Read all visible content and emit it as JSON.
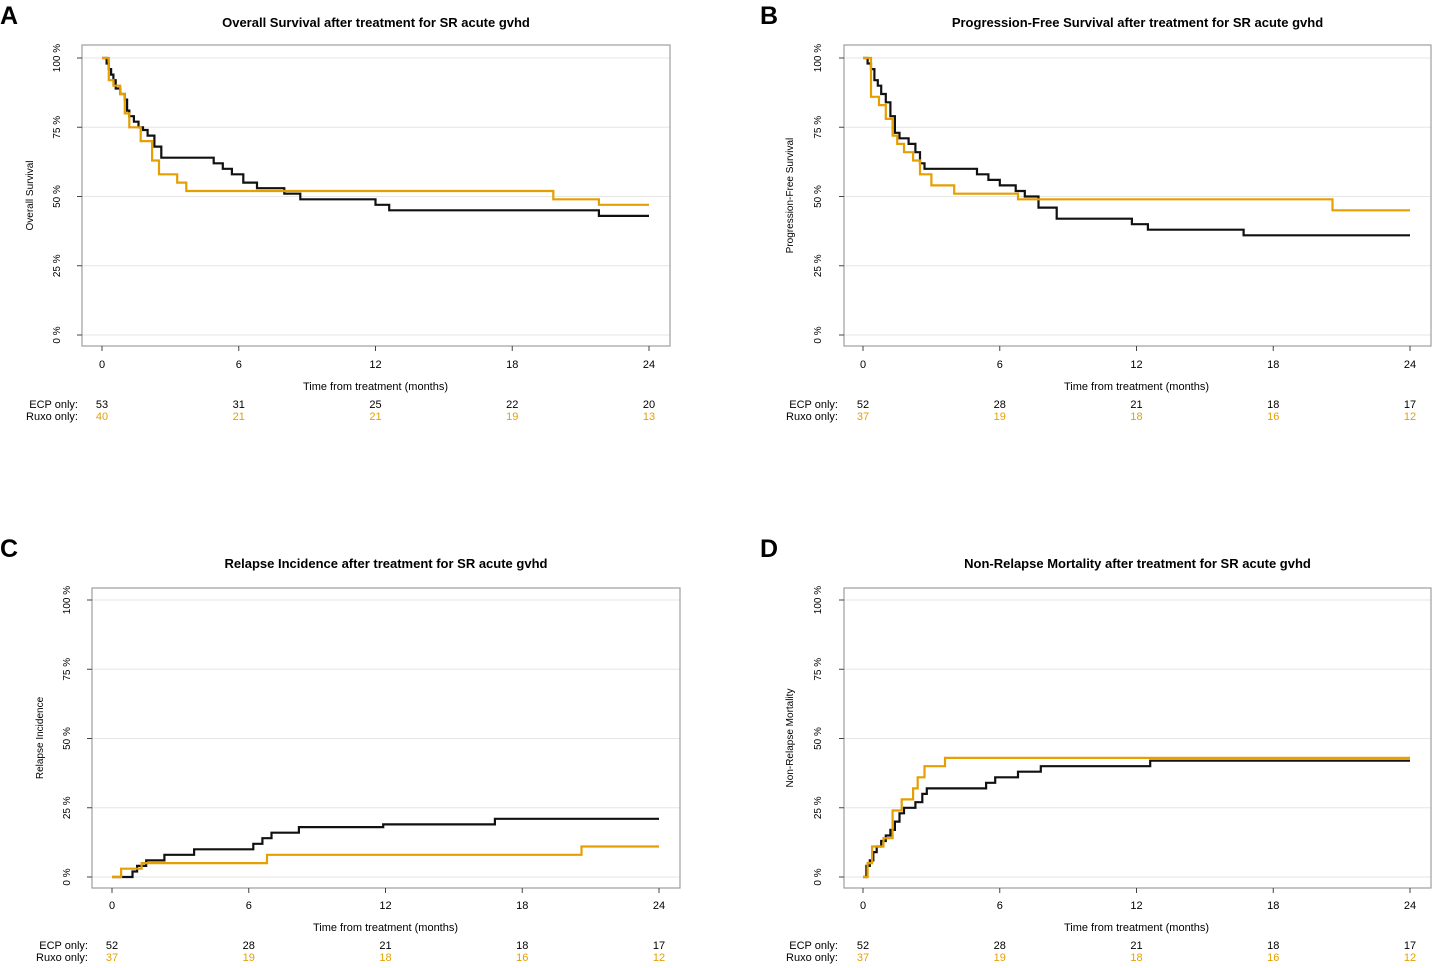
{
  "colors": {
    "ecp": "#111111",
    "ruxo": "#E69F00",
    "grid": "#E6E6E6",
    "frame": "#9E9E9E",
    "text": "#000000"
  },
  "legend": {
    "ecp": "ECP only:",
    "ruxo": "Ruxo only:"
  },
  "chart_data": [
    {
      "panel": "A",
      "type": "line",
      "step": true,
      "title": "Overall Survival after treatment for SR acute gvhd",
      "xlabel": "Time from treatment (months)",
      "ylabel": "Overall Survival",
      "xlim": [
        0,
        24
      ],
      "ylim": [
        0,
        100
      ],
      "xticks": [
        0,
        6,
        12,
        18,
        24
      ],
      "yticks": [
        0,
        25,
        50,
        75,
        100
      ],
      "ytick_labels": [
        "0 %",
        "25 %",
        "50 %",
        "75 %",
        "100 %"
      ],
      "grid": true,
      "series": [
        {
          "name": "ECP only",
          "x": [
            0,
            0.2,
            0.3,
            0.4,
            0.5,
            0.6,
            0.8,
            1.0,
            1.1,
            1.2,
            1.4,
            1.6,
            1.8,
            2.0,
            2.3,
            2.6,
            4.9,
            5.3,
            5.7,
            6.2,
            6.8,
            7.3,
            8.0,
            8.7,
            12.0,
            12.6,
            21.8,
            24
          ],
          "y": [
            100,
            98,
            96,
            94,
            92,
            89,
            87,
            85,
            81,
            79,
            77,
            75,
            74,
            72,
            68,
            64,
            62,
            60,
            58,
            55,
            53,
            53,
            51,
            49,
            47,
            45,
            43,
            43
          ]
        },
        {
          "name": "Ruxo only",
          "x": [
            0,
            0.3,
            0.5,
            0.8,
            1.0,
            1.2,
            1.7,
            2.2,
            2.5,
            3.3,
            3.7,
            19.8,
            21.8,
            24
          ],
          "y": [
            100,
            92,
            90,
            87,
            80,
            75,
            70,
            63,
            58,
            55,
            52,
            49,
            47,
            47
          ]
        }
      ],
      "risk_table": {
        "times": [
          0,
          6,
          12,
          18,
          24
        ],
        "ecp": [
          53,
          31,
          25,
          22,
          20
        ],
        "ruxo": [
          40,
          21,
          21,
          19,
          13
        ]
      }
    },
    {
      "panel": "B",
      "type": "line",
      "step": true,
      "title": "Progression-Free Survival after treatment for SR acute gvhd",
      "xlabel": "Time from treatment (months)",
      "ylabel": "Progression-Free Survival",
      "xlim": [
        0,
        24
      ],
      "ylim": [
        0,
        100
      ],
      "xticks": [
        0,
        6,
        12,
        18,
        24
      ],
      "yticks": [
        0,
        25,
        50,
        75,
        100
      ],
      "ytick_labels": [
        "0 %",
        "25 %",
        "50 %",
        "75 %",
        "100 %"
      ],
      "grid": true,
      "series": [
        {
          "name": "ECP only",
          "x": [
            0,
            0.2,
            0.35,
            0.5,
            0.65,
            0.8,
            1.0,
            1.2,
            1.4,
            1.6,
            2.0,
            2.3,
            2.5,
            2.7,
            5.0,
            5.5,
            6.0,
            6.7,
            7.1,
            7.7,
            8.5,
            11.8,
            12.5,
            16.7,
            24
          ],
          "y": [
            100,
            98,
            96,
            92,
            90,
            87,
            84,
            79,
            73,
            71,
            69,
            66,
            62,
            60,
            58,
            56,
            54,
            52,
            50,
            46,
            42,
            40,
            38,
            36,
            36
          ]
        },
        {
          "name": "Ruxo only",
          "x": [
            0,
            0.35,
            0.7,
            1.0,
            1.3,
            1.5,
            1.8,
            2.2,
            2.5,
            3.0,
            4.0,
            6.8,
            20.6,
            24
          ],
          "y": [
            100,
            86,
            83,
            78,
            72,
            69,
            66,
            63,
            58,
            54,
            51,
            49,
            45,
            45
          ]
        }
      ],
      "risk_table": {
        "times": [
          0,
          6,
          12,
          18,
          24
        ],
        "ecp": [
          52,
          28,
          21,
          18,
          17
        ],
        "ruxo": [
          37,
          19,
          18,
          16,
          12
        ]
      }
    },
    {
      "panel": "C",
      "type": "line",
      "step": true,
      "title": "Relapse Incidence after treatment for SR acute gvhd",
      "xlabel": "Time from treatment (months)",
      "ylabel": "Relapse Incidence",
      "xlim": [
        0,
        24
      ],
      "ylim": [
        0,
        100
      ],
      "xticks": [
        0,
        6,
        12,
        18,
        24
      ],
      "yticks": [
        0,
        25,
        50,
        75,
        100
      ],
      "ytick_labels": [
        "0 %",
        "25 %",
        "50 %",
        "75 %",
        "100 %"
      ],
      "grid": true,
      "series": [
        {
          "name": "ECP only",
          "x": [
            0,
            0.9,
            1.1,
            1.5,
            2.3,
            3.6,
            6.2,
            6.6,
            7.0,
            8.2,
            11.9,
            16.8,
            24
          ],
          "y": [
            0,
            2,
            4,
            6,
            8,
            10,
            12,
            14,
            16,
            18,
            19,
            21,
            21
          ]
        },
        {
          "name": "Ruxo only",
          "x": [
            0,
            0.4,
            1.3,
            6.8,
            20.6,
            24
          ],
          "y": [
            0,
            3,
            5,
            8,
            11,
            11
          ]
        }
      ],
      "risk_table": {
        "times": [
          0,
          6,
          12,
          18,
          24
        ],
        "ecp": [
          52,
          28,
          21,
          18,
          17
        ],
        "ruxo": [
          37,
          19,
          18,
          16,
          12
        ]
      }
    },
    {
      "panel": "D",
      "type": "line",
      "step": true,
      "title": "Non-Relapse Mortality after treatment for SR acute gvhd",
      "xlabel": "Time from treatment (months)",
      "ylabel": "Non-Relapse Mortality",
      "xlim": [
        0,
        24
      ],
      "ylim": [
        0,
        100
      ],
      "xticks": [
        0,
        6,
        12,
        18,
        24
      ],
      "yticks": [
        0,
        25,
        50,
        75,
        100
      ],
      "ytick_labels": [
        "0 %",
        "25 %",
        "50 %",
        "75 %",
        "100 %"
      ],
      "grid": true,
      "series": [
        {
          "name": "ECP only",
          "x": [
            0,
            0.15,
            0.3,
            0.45,
            0.6,
            0.8,
            1.0,
            1.2,
            1.4,
            1.6,
            1.8,
            2.3,
            2.6,
            2.8,
            5.4,
            5.8,
            6.8,
            7.8,
            12.6,
            24
          ],
          "y": [
            0,
            4,
            6,
            9,
            11,
            13,
            15,
            17,
            20,
            23,
            25,
            27,
            30,
            32,
            34,
            36,
            38,
            40,
            42,
            42
          ]
        },
        {
          "name": "Ruxo only",
          "x": [
            0,
            0.2,
            0.4,
            0.9,
            1.3,
            1.7,
            2.2,
            2.4,
            2.7,
            3.6,
            24
          ],
          "y": [
            0,
            5,
            11,
            14,
            24,
            28,
            32,
            36,
            40,
            43,
            43
          ]
        }
      ],
      "risk_table": {
        "times": [
          0,
          6,
          12,
          18,
          24
        ],
        "ecp": [
          52,
          28,
          21,
          18,
          17
        ],
        "ruxo": [
          37,
          19,
          18,
          16,
          12
        ]
      }
    }
  ]
}
